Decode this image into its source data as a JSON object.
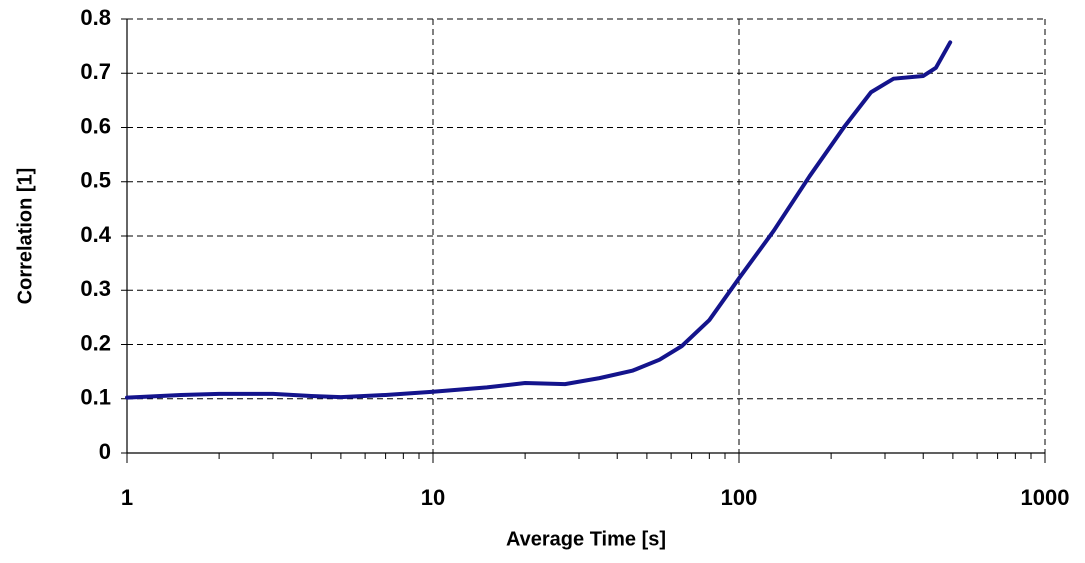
{
  "chart_data": {
    "type": "line",
    "x_label": "Average Time [s]",
    "y_label": "Correlation [1]",
    "x": [
      1,
      1.5,
      2,
      3,
      4,
      5,
      7,
      10,
      15,
      20,
      27,
      35,
      45,
      55,
      65,
      80,
      100,
      130,
      170,
      220,
      270,
      320,
      400,
      440,
      490
    ],
    "series": [
      {
        "name": "Correlation",
        "color": "#14148c",
        "values": [
          0.102,
          0.107,
          0.109,
          0.109,
          0.105,
          0.103,
          0.107,
          0.113,
          0.121,
          0.129,
          0.127,
          0.138,
          0.152,
          0.172,
          0.197,
          0.245,
          0.322,
          0.41,
          0.51,
          0.6,
          0.665,
          0.69,
          0.695,
          0.71,
          0.757
        ]
      }
    ],
    "xlog": true,
    "xlim": [
      1,
      1000
    ],
    "xticks": [
      1,
      10,
      100,
      1000
    ],
    "xminorticks": [
      2,
      3,
      4,
      5,
      6,
      7,
      8,
      9,
      20,
      30,
      40,
      50,
      60,
      70,
      80,
      90,
      200,
      300,
      400,
      500,
      600,
      700,
      800,
      900
    ],
    "ylim": [
      0,
      0.8
    ],
    "yticks": [
      0,
      0.1,
      0.2,
      0.3,
      0.4,
      0.5,
      0.6,
      0.7,
      0.8
    ],
    "grid": true
  }
}
